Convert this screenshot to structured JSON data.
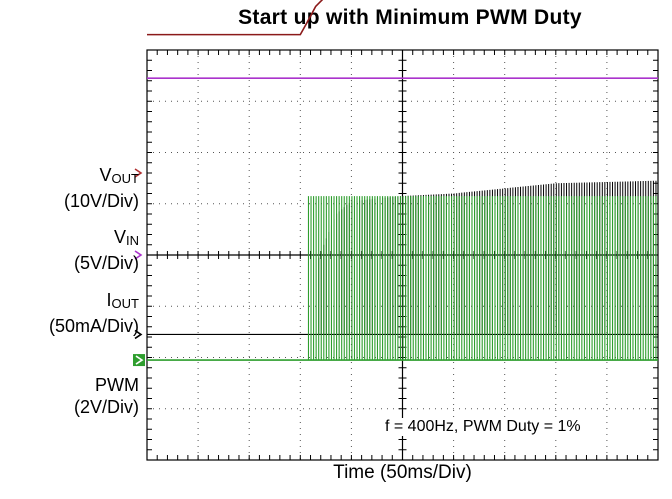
{
  "chart_data": {
    "type": "line",
    "title": "Start up with Minimum PWM Duty",
    "xlabel": "Time (50ms/Div)",
    "ylabel": "",
    "xlim": [
      0,
      500
    ],
    "x_units": "ms",
    "x_div": 50,
    "grid": true,
    "annotation": "f = 400Hz, PWM Duty = 1%",
    "channels": [
      {
        "key": "vout",
        "label_main": "V",
        "label_sub": "OUT",
        "label_scale": "(10V/Div)",
        "color": "#8b1a1a",
        "marker_color": "#b03030",
        "points": [
          [
            0,
            4.3
          ],
          [
            150,
            4.3
          ],
          [
            157,
            4.55
          ],
          [
            165,
            4.85
          ],
          [
            175,
            5.05
          ],
          [
            200,
            5.12
          ],
          [
            260,
            5.18
          ],
          [
            500,
            5.22
          ]
        ]
      },
      {
        "key": "vin",
        "label_main": "V",
        "label_sub": "IN",
        "label_scale": "(5V/Div)",
        "color": "#aa33cc",
        "marker_color": "#aa33cc",
        "points": [
          [
            0,
            3.45
          ],
          [
            500,
            3.45
          ]
        ]
      },
      {
        "key": "iout",
        "label_main": "I",
        "label_sub": "OUT",
        "label_scale": "(50mA/Div)",
        "color": "#000000",
        "marker_color": "#000000",
        "pulse_start_ms": 168,
        "pulse_period_ms": 2.5,
        "pulse_envelope": [
          [
            168,
            1.5
          ],
          [
            185,
            2.35
          ],
          [
            200,
            2.6
          ],
          [
            250,
            2.7
          ],
          [
            300,
            2.75
          ],
          [
            400,
            2.95
          ],
          [
            500,
            3.0
          ]
        ]
      },
      {
        "key": "pwm",
        "label_main": "PWM",
        "label_sub": "",
        "label_scale": "(2V/Div)",
        "color": "#2e9e2e",
        "marker_color": "#2e9e2e",
        "pulse_start_ms": 158,
        "pulse_period_ms": 2.5,
        "low_level": -2.05,
        "high_level": 1.15
      }
    ]
  }
}
